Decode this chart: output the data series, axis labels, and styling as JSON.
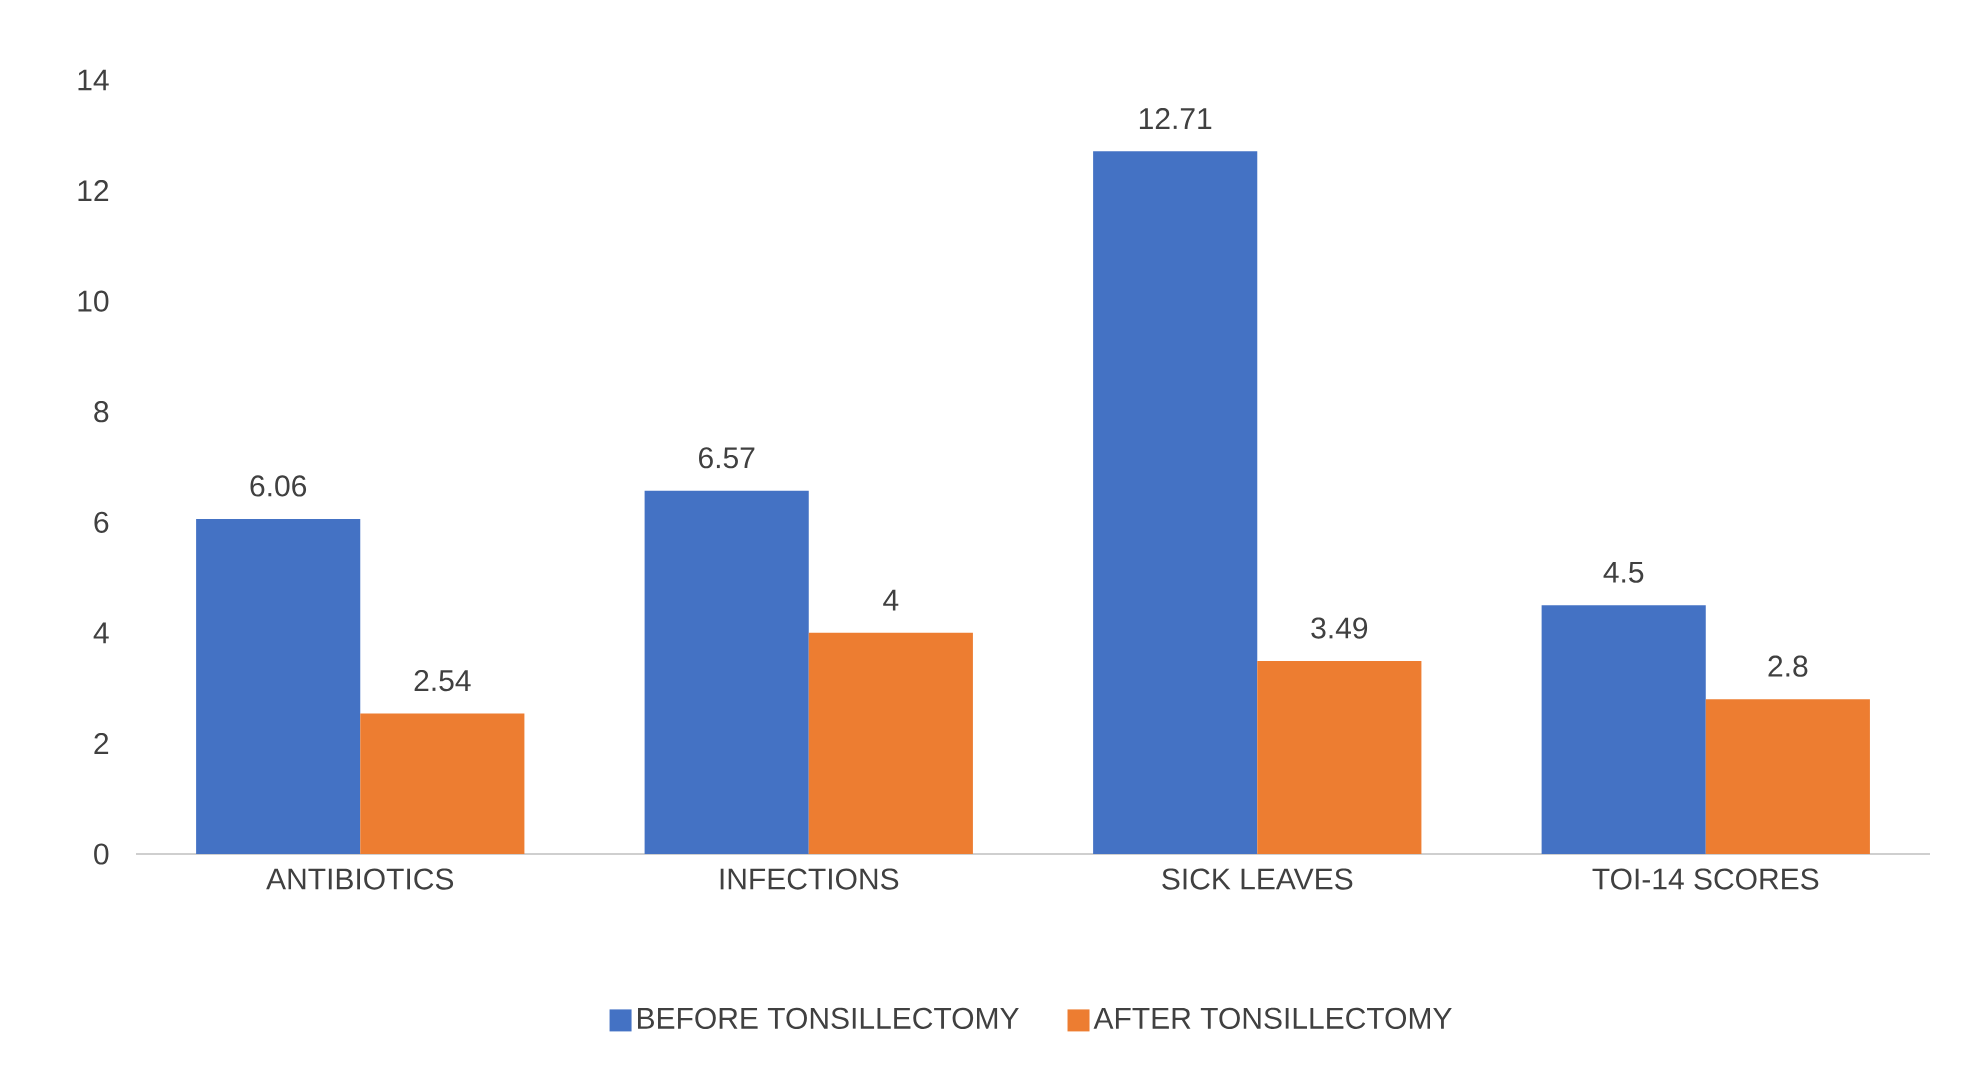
{
  "chart_data": {
    "type": "bar",
    "categories": [
      "ANTIBIOTICS",
      "INFECTIONS",
      "SICK LEAVES",
      "TOI-14 SCORES"
    ],
    "series": [
      {
        "name": "BEFORE TONSILLECTOMY",
        "color": "#4472c4",
        "values": [
          6.06,
          6.57,
          12.71,
          4.5
        ]
      },
      {
        "name": "AFTER TONSILLECTOMY",
        "color": "#ed7d31",
        "values": [
          2.54,
          4,
          3.49,
          2.8
        ]
      }
    ],
    "ylim": [
      0,
      14
    ],
    "yticks": [
      0,
      2,
      4,
      6,
      8,
      10,
      12,
      14
    ],
    "data_labels": true,
    "legend": "bottom",
    "grid": false
  }
}
